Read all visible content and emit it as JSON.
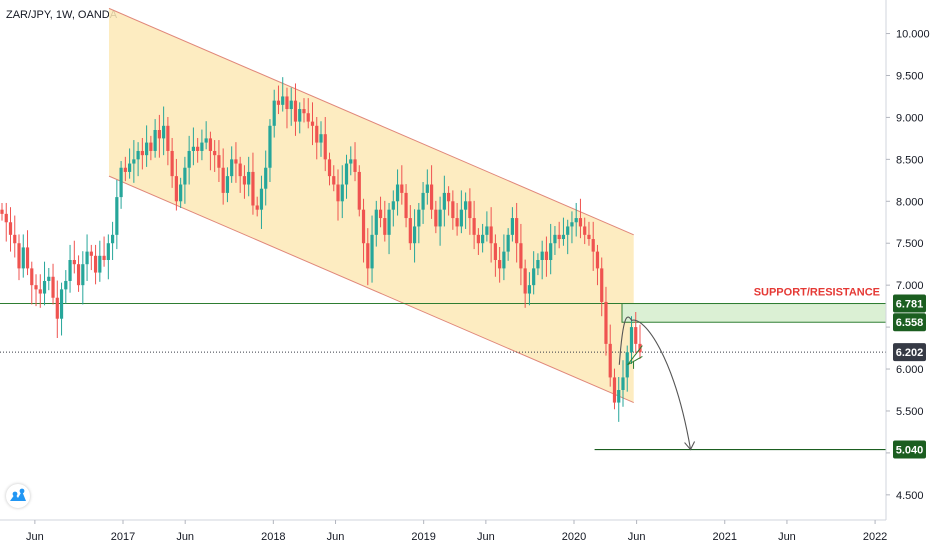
{
  "header": {
    "symbol_line": "ZAR/JPY, 1W, OANDA"
  },
  "colors": {
    "up": "#26a69a",
    "down": "#ef5350",
    "channel_fill": "#fde9b6",
    "channel_line": "#e0877a",
    "sr_zone": "#dbf0d4",
    "sr_line": "#2e7d32",
    "target_line": "#1b5e20",
    "label_dark": "#1b5e20",
    "current_tag": "#363a45",
    "support_text": "#e53935"
  },
  "annotation": {
    "support_resistance_label": "SUPPORT/RESISTANCE"
  },
  "chart_data": {
    "type": "candlestick",
    "title": "ZAR/JPY, 1W, OANDA",
    "ylim": [
      4.2,
      10.4
    ],
    "y_ticks": [
      "10.000",
      "9.500",
      "9.000",
      "8.500",
      "8.000",
      "7.500",
      "7.000",
      "6.500",
      "6.000",
      "5.500",
      "5.000",
      "4.500"
    ],
    "x_ticks": [
      "Jun",
      "2017",
      "Jun",
      "2018",
      "Jun",
      "2019",
      "Jun",
      "2020",
      "Jun",
      "2021",
      "Jun",
      "2022"
    ],
    "x_tick_dates": [
      "2016-06",
      "2017-01",
      "2017-06",
      "2018-01",
      "2018-06",
      "2019-01",
      "2019-06",
      "2020-01",
      "2020-06",
      "2021-01",
      "2021-06",
      "2022-01"
    ],
    "price_tags": [
      {
        "label": "6.781",
        "value": 6.781,
        "kind": "zone_top"
      },
      {
        "label": "6.558",
        "value": 6.558,
        "kind": "zone_bottom"
      },
      {
        "label": "6.202",
        "value": 6.202,
        "kind": "current"
      },
      {
        "label": "5.040",
        "value": 5.04,
        "kind": "target"
      }
    ],
    "channel": {
      "upper": [
        [
          "2016-11-28",
          10.3
        ],
        [
          "2020-05-25",
          7.6
        ]
      ],
      "lower": [
        [
          "2016-11-28",
          8.3
        ],
        [
          "2020-05-25",
          5.6
        ]
      ]
    },
    "support_resistance_zone": [
      6.558,
      6.781
    ],
    "target_level": 5.04,
    "target_line_start": "2020-02-20",
    "projection_path": [
      [
        "2020-04-20",
        6.05
      ],
      [
        "2020-05-20",
        6.58
      ],
      [
        "2020-07-15",
        6.25
      ],
      [
        "2020-10-10",
        5.04
      ]
    ],
    "closes": [
      7.85,
      7.75,
      7.6,
      7.5,
      7.2,
      7.45,
      7.2,
      7.0,
      6.95,
      6.9,
      7.05,
      7.1,
      6.85,
      6.6,
      6.95,
      7.05,
      7.3,
      7.25,
      7.0,
      7.25,
      7.4,
      7.35,
      7.15,
      7.35,
      7.3,
      7.5,
      7.6,
      8.05,
      8.4,
      8.35,
      8.45,
      8.5,
      8.6,
      8.55,
      8.7,
      8.6,
      8.85,
      8.75,
      8.9,
      8.6,
      8.3,
      8.0,
      8.2,
      8.4,
      8.6,
      8.65,
      8.6,
      8.7,
      8.75,
      8.6,
      8.55,
      8.4,
      8.1,
      8.3,
      8.5,
      8.45,
      8.3,
      8.2,
      8.35,
      7.95,
      7.9,
      8.15,
      8.4,
      8.9,
      9.2,
      9.15,
      9.25,
      9.1,
      9.2,
      8.95,
      9.1,
      9.05,
      8.95,
      8.9,
      8.7,
      8.8,
      8.5,
      8.3,
      8.2,
      8.0,
      8.2,
      8.45,
      8.5,
      8.35,
      7.9,
      7.5,
      7.2,
      7.6,
      7.9,
      7.8,
      7.6,
      7.9,
      8.0,
      8.2,
      8.1,
      7.8,
      7.5,
      7.7,
      7.9,
      8.1,
      8.2,
      7.9,
      7.7,
      7.9,
      8.1,
      8.0,
      7.8,
      7.7,
      7.9,
      8.0,
      7.8,
      7.6,
      7.5,
      7.6,
      7.7,
      7.5,
      7.3,
      7.2,
      7.4,
      7.6,
      7.8,
      7.5,
      7.2,
      6.9,
      7.0,
      7.2,
      7.3,
      7.4,
      7.3,
      7.5,
      7.6,
      7.55,
      7.6,
      7.7,
      7.75,
      7.8,
      7.7,
      7.6,
      7.55,
      7.4,
      7.2,
      6.8,
      6.3,
      5.9,
      5.6,
      5.75,
      5.9,
      6.2,
      6.5,
      6.3,
      6.2
    ]
  }
}
